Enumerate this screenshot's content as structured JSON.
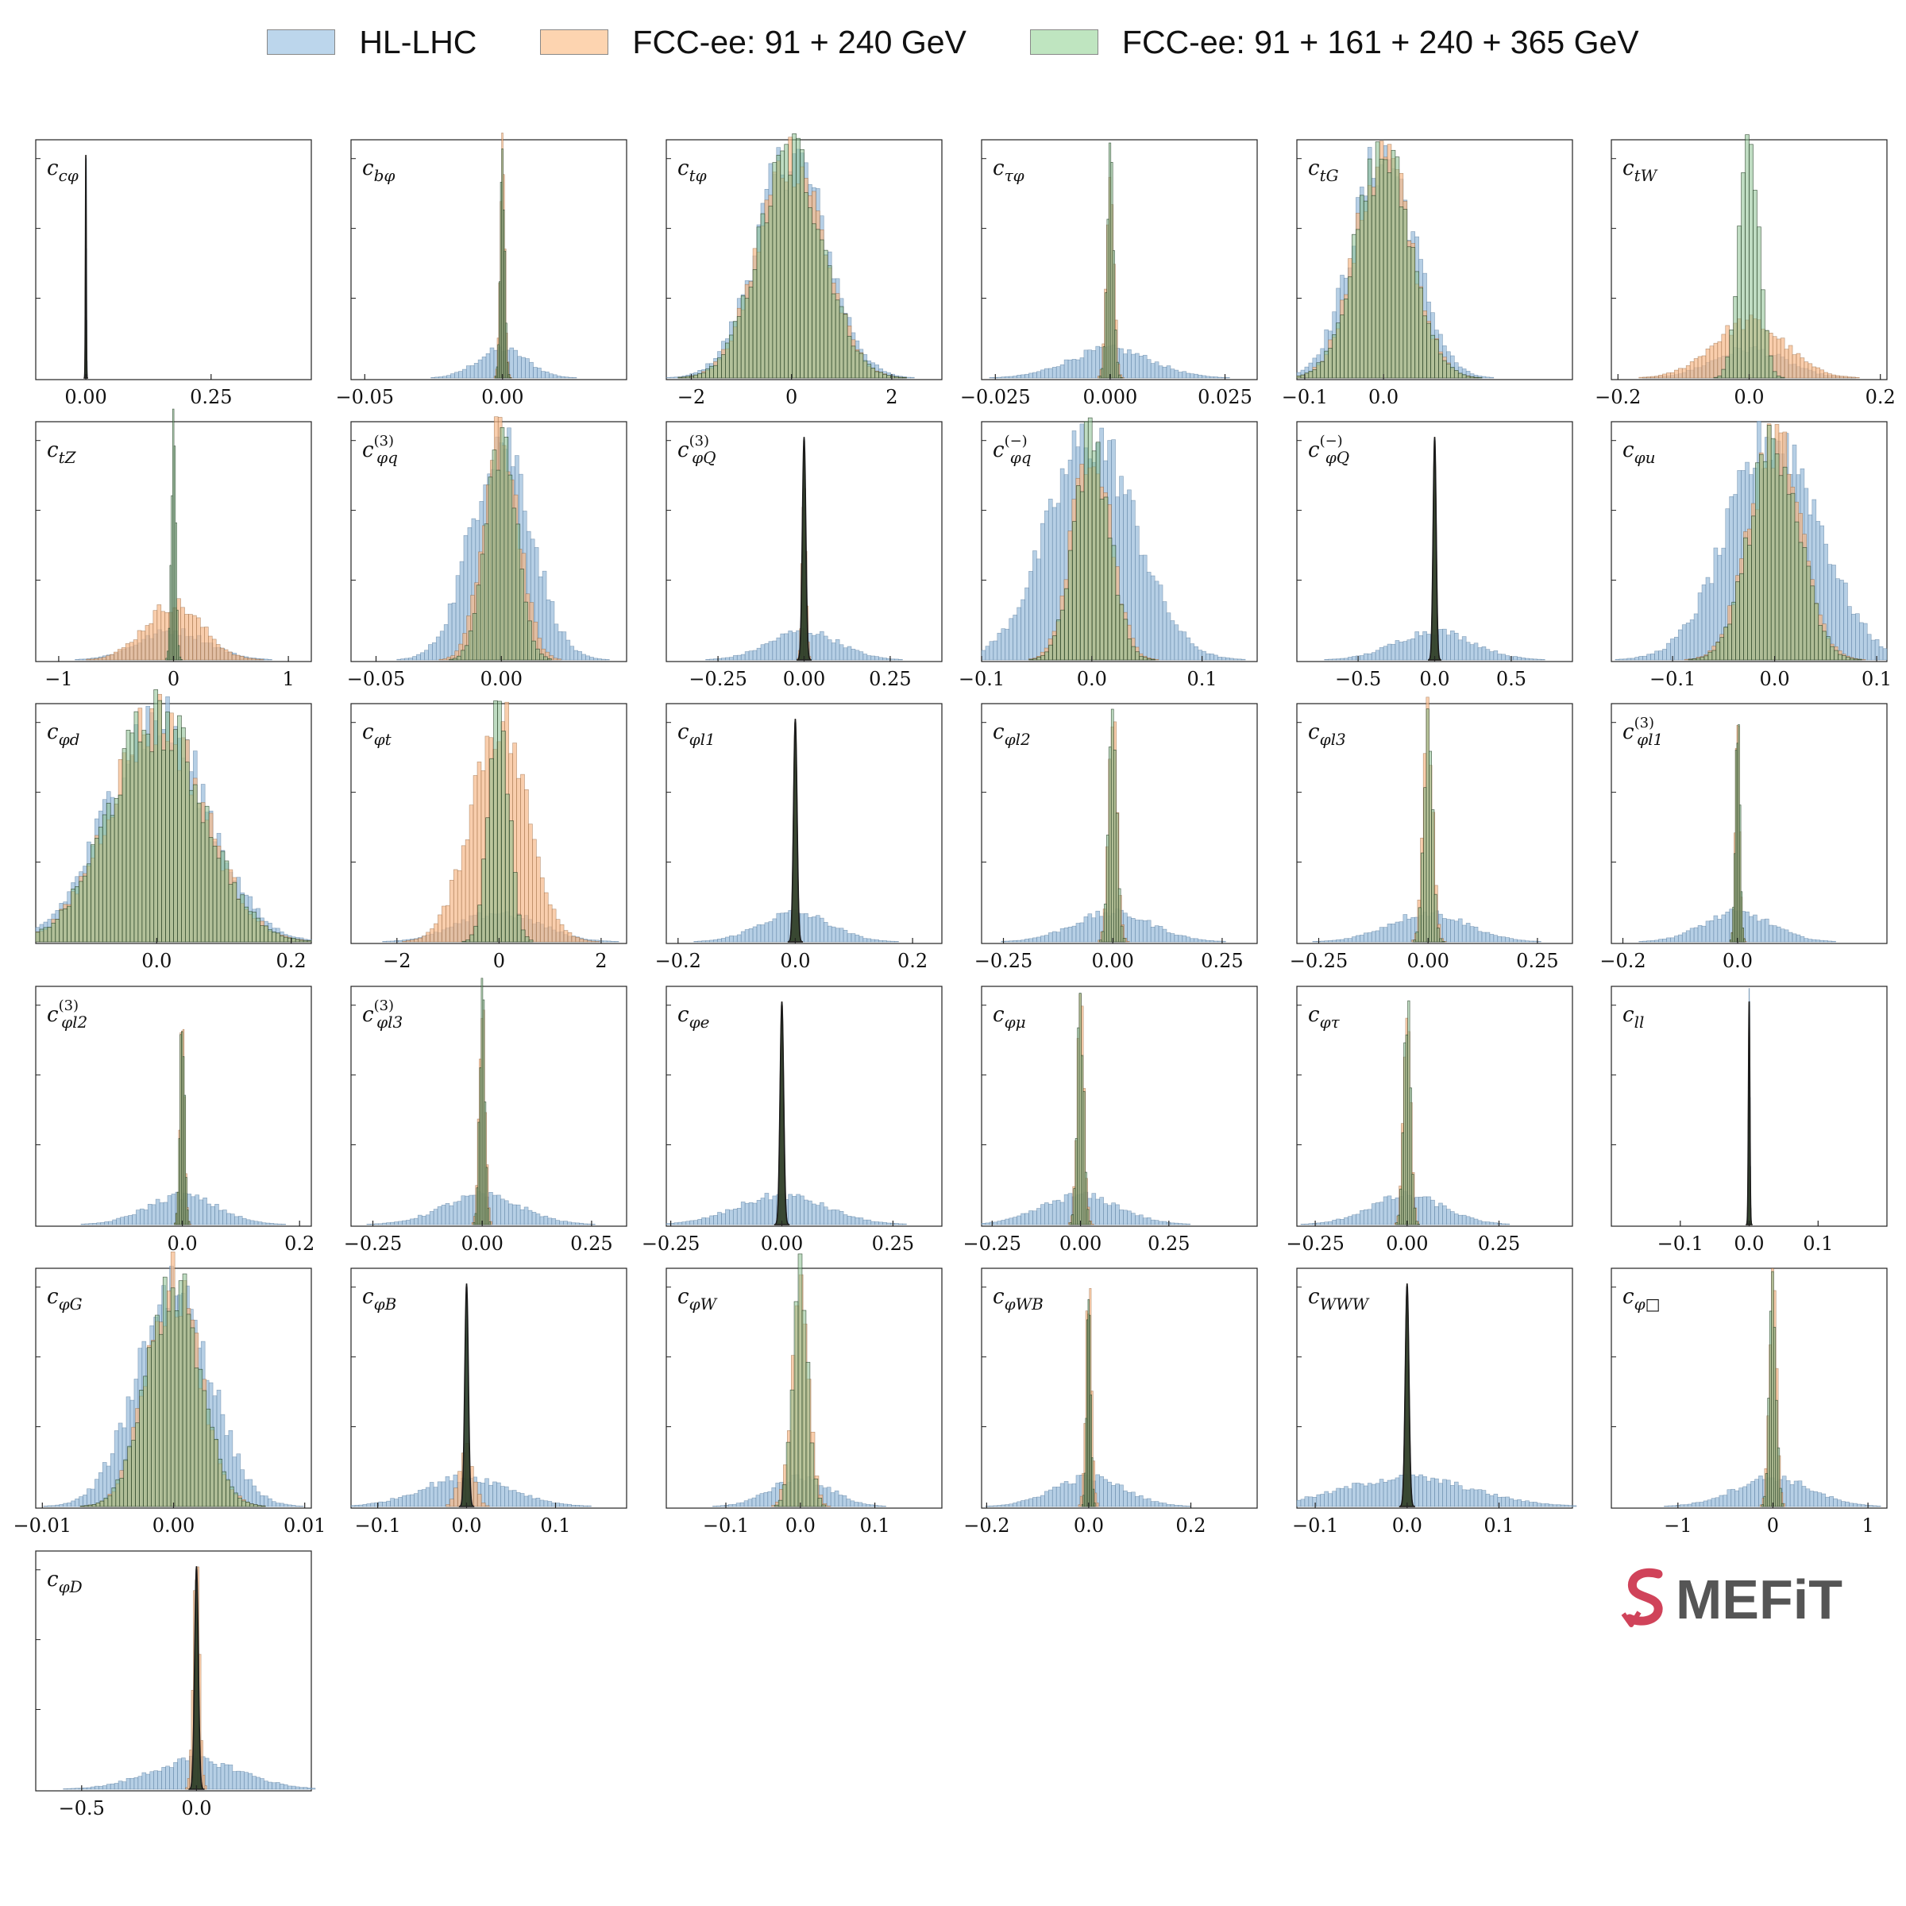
{
  "legend": {
    "entries": [
      {
        "label": "HL-LHC",
        "color": "#bcd6ec"
      },
      {
        "label": "FCC-ee: 91 + 240 GeV",
        "color": "#fdd4b0"
      },
      {
        "label": "FCC-ee: 91 + 161 + 240 + 365 GeV",
        "color": "#bfe5c0"
      }
    ]
  },
  "logo": {
    "text": "MEFiT",
    "mark_color": "#d0435a",
    "text_color": "#555555"
  },
  "colors": {
    "hl": "#9dbfdc",
    "fcc2": "#f7b98a",
    "fcc4": "#8bbf8f",
    "outline": "#1a1a1a"
  },
  "chart_data": [
    {
      "type": "bar",
      "label": "c_{cφ}",
      "xlim": [
        -0.1,
        0.45
      ],
      "xticks": [
        0,
        0.25
      ],
      "xticklabels": [
        "0.00",
        "0.25"
      ],
      "hl_sigma": 0.0008,
      "fcc2_sigma": 0.0008,
      "fcc4_sigma": 0.0008
    },
    {
      "type": "bar",
      "label": "c_{bφ}",
      "xlim": [
        -0.055,
        0.045
      ],
      "xticks": [
        -0.05,
        0
      ],
      "xticklabels": [
        "−0.05",
        "0.00"
      ],
      "hl_sigma": 0.009,
      "fcc2_sigma": 0.0009,
      "fcc4_sigma": 0.0008
    },
    {
      "type": "bar",
      "label": "c_{tφ}",
      "xlim": [
        -2.5,
        3.0
      ],
      "xticks": [
        -2,
        0,
        2
      ],
      "xticklabels": [
        "−2",
        "0",
        "2"
      ],
      "hl_sigma": 0.7,
      "fcc2_sigma": 0.65,
      "fcc4_sigma": 0.65
    },
    {
      "type": "bar",
      "label": "c_{τφ}",
      "xlim": [
        -0.028,
        0.032
      ],
      "xticks": [
        -0.025,
        0,
        0.025
      ],
      "xticklabels": [
        "−0.025",
        "0.000",
        "0.025"
      ],
      "hl_sigma": 0.009,
      "fcc2_sigma": 0.0008,
      "fcc4_sigma": 0.0007
    },
    {
      "type": "bar",
      "label": "c_{tG}",
      "xlim": [
        -0.11,
        0.24
      ],
      "xticks": [
        -0.1,
        0
      ],
      "xticklabels": [
        "−0.1",
        "0.0"
      ],
      "hl_sigma": 0.04,
      "fcc2_sigma": 0.035,
      "fcc4_sigma": 0.035
    },
    {
      "type": "bar",
      "label": "c_{tW}",
      "xlim": [
        -0.21,
        0.21
      ],
      "xticks": [
        -0.2,
        0,
        0.2
      ],
      "xticklabels": [
        "−0.2",
        "0.0",
        "0.2"
      ],
      "hl_sigma": 0.055,
      "fcc2_sigma": 0.055,
      "fcc4_sigma": 0.015
    },
    {
      "type": "bar",
      "label": "c_{tZ}",
      "xlim": [
        -1.2,
        1.2
      ],
      "xticks": [
        -1,
        0,
        1
      ],
      "xticklabels": [
        "−1",
        "0",
        "1"
      ],
      "hl_sigma": 0.3,
      "fcc2_sigma": 0.25,
      "fcc4_sigma": 0.02
    },
    {
      "type": "bar",
      "label": "c^{(3)}_{φq}",
      "xlim": [
        -0.06,
        0.05
      ],
      "xticks": [
        -0.05,
        0
      ],
      "xticklabels": [
        "−0.05",
        "0.00"
      ],
      "hl_sigma": 0.012,
      "fcc2_sigma": 0.007,
      "fcc4_sigma": 0.006
    },
    {
      "type": "bar",
      "label": "c^{(3)}_{φQ}",
      "xlim": [
        -0.4,
        0.4
      ],
      "xticks": [
        -0.25,
        0,
        0.25
      ],
      "xticklabels": [
        "−0.25",
        "0.00",
        "0.25"
      ],
      "hl_sigma": 0.1,
      "fcc2_sigma": 0.006,
      "fcc4_sigma": 0.005
    },
    {
      "type": "bar",
      "label": "c^{(−)}_{φq}",
      "xlim": [
        -0.1,
        0.15
      ],
      "xticks": [
        -0.1,
        0,
        0.1
      ],
      "xticklabels": [
        "−0.1",
        "0.0",
        "0.1"
      ],
      "hl_sigma": 0.04,
      "fcc2_sigma": 0.017,
      "fcc4_sigma": 0.016
    },
    {
      "type": "bar",
      "label": "c^{(−)}_{φQ}",
      "xlim": [
        -0.9,
        0.9
      ],
      "xticks": [
        -0.5,
        0,
        0.5
      ],
      "xticklabels": [
        "−0.5",
        "0.0",
        "0.5"
      ],
      "hl_sigma": 0.25,
      "fcc2_sigma": 0.01,
      "fcc4_sigma": 0.01
    },
    {
      "type": "bar",
      "label": "c_{φu}",
      "xlim": [
        -0.16,
        0.11
      ],
      "xticks": [
        -0.1,
        0,
        0.1
      ],
      "xticklabels": [
        "−0.1",
        "0.0",
        "0.1"
      ],
      "hl_sigma": 0.045,
      "fcc2_sigma": 0.025,
      "fcc4_sigma": 0.024
    },
    {
      "type": "bar",
      "label": "c_{φd}",
      "xlim": [
        -0.18,
        0.23
      ],
      "xticks": [
        0,
        0.2
      ],
      "xticklabels": [
        "0.0",
        "0.2"
      ],
      "hl_sigma": 0.075,
      "fcc2_sigma": 0.07,
      "fcc4_sigma": 0.07
    },
    {
      "type": "bar",
      "label": "c_{φt}",
      "xlim": [
        -2.9,
        2.5
      ],
      "xticks": [
        -2,
        0,
        2
      ],
      "xticklabels": [
        "−2",
        "0",
        "2"
      ],
      "hl_sigma": 0.8,
      "fcc2_sigma": 0.55,
      "fcc4_sigma": 0.2
    },
    {
      "type": "bar",
      "label": "c_{φl_1}",
      "xlim": [
        -0.22,
        0.25
      ],
      "xticks": [
        -0.2,
        0,
        0.2
      ],
      "xticklabels": [
        "−0.2",
        "0.0",
        "0.2"
      ],
      "hl_sigma": 0.06,
      "fcc2_sigma": 0.003,
      "fcc4_sigma": 0.003
    },
    {
      "type": "bar",
      "label": "c_{φl_2}",
      "xlim": [
        -0.3,
        0.33
      ],
      "xticks": [
        -0.25,
        0,
        0.25
      ],
      "xticklabels": [
        "−0.25",
        "0.00",
        "0.25"
      ],
      "hl_sigma": 0.09,
      "fcc2_sigma": 0.01,
      "fcc4_sigma": 0.009
    },
    {
      "type": "bar",
      "label": "c_{φl_3}",
      "xlim": [
        -0.3,
        0.33
      ],
      "xticks": [
        -0.25,
        0,
        0.25
      ],
      "xticklabels": [
        "−0.25",
        "0.00",
        "0.25"
      ],
      "hl_sigma": 0.09,
      "fcc2_sigma": 0.011,
      "fcc4_sigma": 0.01
    },
    {
      "type": "bar",
      "label": "c^{(3)}_{φl_1}",
      "xlim": [
        -0.22,
        0.26
      ],
      "xticks": [
        -0.2,
        0
      ],
      "xticklabels": [
        "−0.2",
        "0.0"
      ],
      "hl_sigma": 0.06,
      "fcc2_sigma": 0.004,
      "fcc4_sigma": 0.004
    },
    {
      "type": "bar",
      "label": "c^{(3)}_{φl_2}",
      "xlim": [
        -0.25,
        0.22
      ],
      "xticks": [
        0,
        0.2
      ],
      "xticklabels": [
        "0.0",
        "0.2"
      ],
      "hl_sigma": 0.06,
      "fcc2_sigma": 0.004,
      "fcc4_sigma": 0.004
    },
    {
      "type": "bar",
      "label": "c^{(3)}_{φl_3}",
      "xlim": [
        -0.3,
        0.33
      ],
      "xticks": [
        -0.25,
        0,
        0.25
      ],
      "xticklabels": [
        "−0.25",
        "0.00",
        "0.25"
      ],
      "hl_sigma": 0.09,
      "fcc2_sigma": 0.007,
      "fcc4_sigma": 0.006
    },
    {
      "type": "bar",
      "label": "c_{φe}",
      "xlim": [
        -0.26,
        0.36
      ],
      "xticks": [
        -0.25,
        0,
        0.25
      ],
      "xticklabels": [
        "−0.25",
        "0.00",
        "0.25"
      ],
      "hl_sigma": 0.1,
      "fcc2_sigma": 0.004,
      "fcc4_sigma": 0.004
    },
    {
      "type": "bar",
      "label": "c_{φμ}",
      "xlim": [
        -0.28,
        0.5
      ],
      "xticks": [
        -0.25,
        0,
        0.25
      ],
      "xticklabels": [
        "−0.25",
        "0.00",
        "0.25"
      ],
      "hl_sigma": 0.11,
      "fcc2_sigma": 0.01,
      "fcc4_sigma": 0.009
    },
    {
      "type": "bar",
      "label": "c_{φτ}",
      "xlim": [
        -0.3,
        0.45
      ],
      "xticks": [
        -0.25,
        0,
        0.25
      ],
      "xticklabels": [
        "−0.25",
        "0.00",
        "0.25"
      ],
      "hl_sigma": 0.1,
      "fcc2_sigma": 0.01,
      "fcc4_sigma": 0.009
    },
    {
      "type": "bar",
      "label": "c_{ll}",
      "xlim": [
        -0.2,
        0.2
      ],
      "xticks": [
        -0.1,
        0,
        0.1
      ],
      "xticklabels": [
        "−0.1",
        "0.0",
        "0.1"
      ],
      "hl_sigma": 0.001,
      "fcc2_sigma": 0.001,
      "fcc4_sigma": 0.001
    },
    {
      "type": "bar",
      "label": "c_{φG}",
      "xlim": [
        -0.0105,
        0.0105
      ],
      "xticks": [
        -0.01,
        0,
        0.01
      ],
      "xticklabels": [
        "−0.01",
        "0.00",
        "0.01"
      ],
      "hl_sigma": 0.0028,
      "fcc2_sigma": 0.002,
      "fcc4_sigma": 0.002
    },
    {
      "type": "bar",
      "label": "c_{φB}",
      "xlim": [
        -0.13,
        0.18
      ],
      "xticks": [
        -0.1,
        0,
        0.1
      ],
      "xticklabels": [
        "−0.1",
        "0.0",
        "0.1"
      ],
      "hl_sigma": 0.05,
      "fcc2_sigma": 0.008,
      "fcc4_sigma": 0.002
    },
    {
      "type": "bar",
      "label": "c_{φW}",
      "xlim": [
        -0.18,
        0.19
      ],
      "xticks": [
        -0.1,
        0,
        0.1
      ],
      "xticklabels": [
        "−0.1",
        "0.0",
        "0.1"
      ],
      "hl_sigma": 0.04,
      "fcc2_sigma": 0.011,
      "fcc4_sigma": 0.01
    },
    {
      "type": "bar",
      "label": "c_{φWB}",
      "xlim": [
        -0.21,
        0.33
      ],
      "xticks": [
        -0.2,
        0,
        0.2
      ],
      "xticklabels": [
        "−0.2",
        "0.0",
        "0.2"
      ],
      "hl_sigma": 0.07,
      "fcc2_sigma": 0.006,
      "fcc4_sigma": 0.004
    },
    {
      "type": "bar",
      "label": "c_{WWW}",
      "xlim": [
        -0.12,
        0.18
      ],
      "xticks": [
        -0.1,
        0,
        0.1
      ],
      "xticklabels": [
        "−0.1",
        "0.0",
        "0.1"
      ],
      "hl_sigma": 0.07,
      "fcc2_sigma": 0.002,
      "fcc4_sigma": 0.002
    },
    {
      "type": "bar",
      "label": "c_{φ□}",
      "xlim": [
        -1.7,
        1.2
      ],
      "xticks": [
        -1,
        0,
        1
      ],
      "xticklabels": [
        "−1",
        "0",
        "1"
      ],
      "hl_sigma": 0.4,
      "fcc2_sigma": 0.04,
      "fcc4_sigma": 0.035
    },
    {
      "type": "bar",
      "label": "c_{φD}",
      "xlim": [
        -0.7,
        0.5
      ],
      "xticks": [
        -0.5,
        0
      ],
      "xticklabels": [
        "−0.5",
        "0.0"
      ],
      "hl_sigma": 0.2,
      "fcc2_sigma": 0.014,
      "fcc4_sigma": 0.008
    }
  ]
}
